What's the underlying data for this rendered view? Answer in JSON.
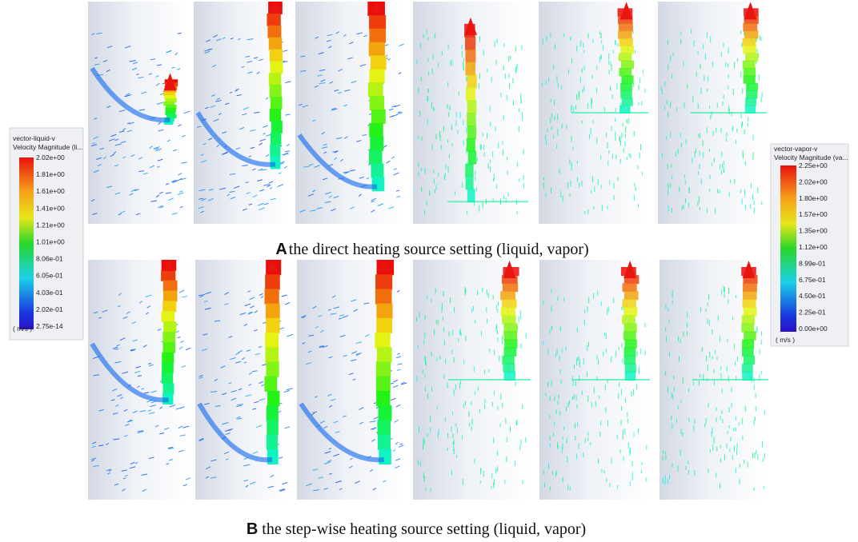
{
  "left_legend": {
    "title": "vector-liquid-v",
    "subtitle": "Velocity Magnitude (li...",
    "labels": [
      "2.02e+00",
      "1.81e+00",
      "1.61e+00",
      "1.41e+00",
      "1.21e+00",
      "1.01e+00",
      "8.06e-01",
      "6.05e-01",
      "4.03e-01",
      "2.02e-01",
      "2.75e-14"
    ],
    "unit": "( m/s )"
  },
  "right_legend": {
    "title": "vector-vapor-v",
    "subtitle": "Velocity Magnitude (va...",
    "labels": [
      "2.25e+00",
      "2.02e+00",
      "1.80e+00",
      "1.57e+00",
      "1.35e+00",
      "1.12e+00",
      "8.99e-01",
      "6.75e-01",
      "4.50e-01",
      "2.25e-01",
      "0.00e+00"
    ],
    "unit": "( m/s )"
  },
  "captions": [
    {
      "letter": "A",
      "text": "the direct heating source setting (liquid, vapor)"
    },
    {
      "letter": "B",
      "text": "the step-wise heating source setting (liquid, vapor)"
    }
  ]
}
